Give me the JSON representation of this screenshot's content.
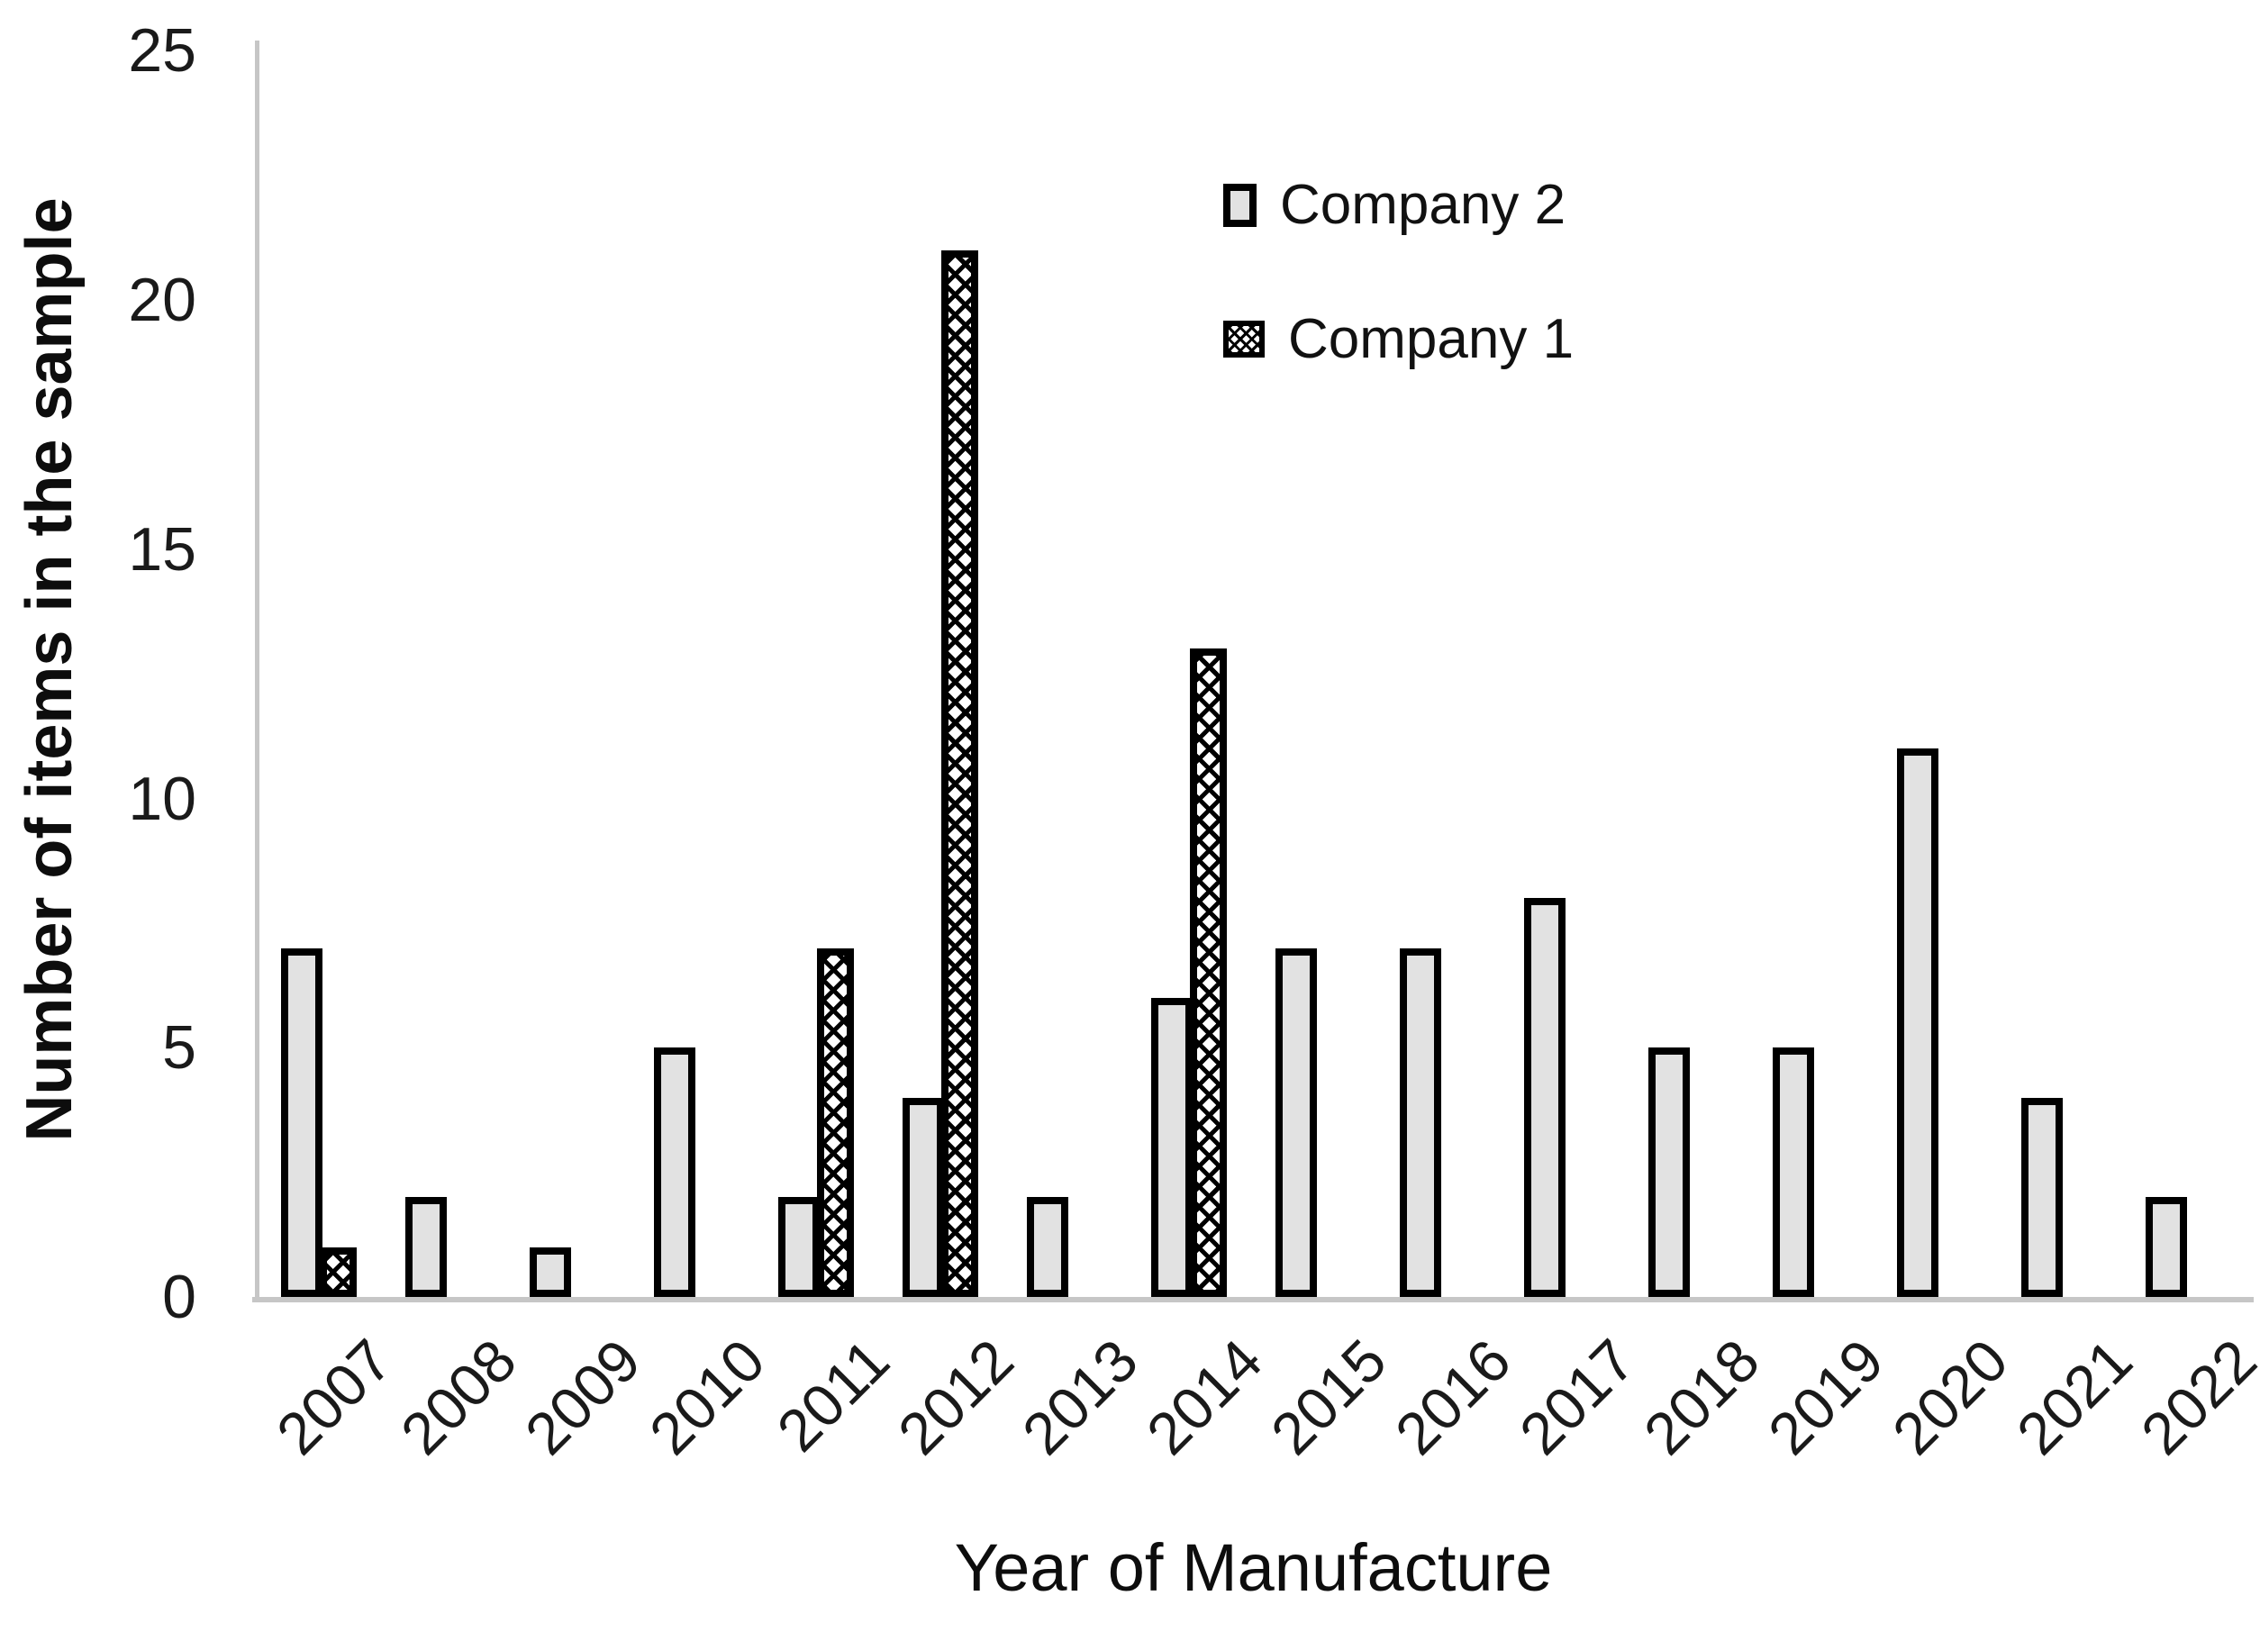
{
  "chart_data": {
    "type": "bar",
    "title": "",
    "xlabel": "Year of Manufacture",
    "ylabel": "Number of items in the sample",
    "categories": [
      "2007",
      "2008",
      "2009",
      "2010",
      "2011",
      "2012",
      "2013",
      "2014",
      "2015",
      "2016",
      "2017",
      "2018",
      "2019",
      "2020",
      "2021",
      "2022"
    ],
    "series": [
      {
        "name": "Company 2",
        "style": "solid-gray",
        "values": [
          7,
          2,
          1,
          5,
          2,
          4,
          2,
          6,
          7,
          7,
          8,
          5,
          5,
          11,
          4,
          2
        ]
      },
      {
        "name": "Company 1",
        "style": "crosshatch",
        "values": [
          1,
          0,
          0,
          0,
          7,
          21,
          0,
          13,
          0,
          0,
          0,
          0,
          0,
          0,
          0,
          0
        ]
      }
    ],
    "yticks": [
      0,
      5,
      10,
      15,
      20,
      25
    ],
    "ylim": [
      0,
      25
    ],
    "grid": false,
    "legend_position": "upper-right-of-center"
  },
  "legend": {
    "items": [
      {
        "label": "Company 2",
        "swatch": "solid-gray"
      },
      {
        "label": "Company 1",
        "swatch": "crosshatch"
      }
    ]
  },
  "colors": {
    "bar_fill": "#e2e2e2",
    "bar_border": "#000000",
    "hatch_foreground": "#000000",
    "hatch_background": "#ffffff",
    "axis_line": "#c6c6c6",
    "text": "#0d0d0d"
  }
}
